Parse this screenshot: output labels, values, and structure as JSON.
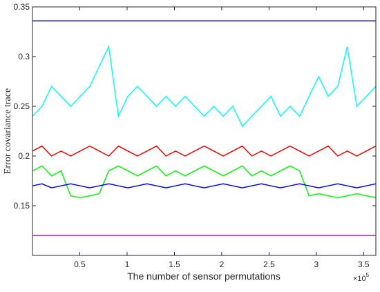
{
  "chart_data": {
    "type": "line",
    "title": "",
    "xlabel": "The number of sensor permutations",
    "ylabel": "Error covariance trace",
    "x_multiplier_label": "×10",
    "x_multiplier_exponent": "5",
    "xlim": [
      0,
      362880
    ],
    "ylim": [
      0.1,
      0.35
    ],
    "xticks": [
      50000,
      100000,
      150000,
      200000,
      250000,
      300000,
      350000
    ],
    "xtick_labels": [
      "0.5",
      "1",
      "1.5",
      "2",
      "2.5",
      "3",
      "3.5"
    ],
    "yticks": [
      0.15,
      0.2,
      0.25,
      0.3,
      0.35
    ],
    "ytick_labels": [
      "0.15",
      "0.2",
      "0.25",
      "0.3",
      "0.35"
    ],
    "grid": false,
    "legend": "none",
    "series": [
      {
        "color": "#00ffff",
        "values": [
          0.24,
          0.25,
          0.27,
          0.26,
          0.25,
          0.26,
          0.27,
          0.29,
          0.31,
          0.24,
          0.26,
          0.27,
          0.26,
          0.25,
          0.26,
          0.25,
          0.26,
          0.25,
          0.24,
          0.25,
          0.24,
          0.25,
          0.23,
          0.24,
          0.25,
          0.26,
          0.24,
          0.25,
          0.24,
          0.26,
          0.28,
          0.26,
          0.27,
          0.31,
          0.25,
          0.26,
          0.27
        ]
      },
      {
        "color": "#ff0000",
        "values": [
          0.205,
          0.21,
          0.2,
          0.205,
          0.2,
          0.205,
          0.21,
          0.205,
          0.2,
          0.21,
          0.205,
          0.2,
          0.205,
          0.21,
          0.2,
          0.205,
          0.2,
          0.205,
          0.21,
          0.205,
          0.2,
          0.205,
          0.21,
          0.2,
          0.205,
          0.2,
          0.205,
          0.21,
          0.205,
          0.2,
          0.205,
          0.21,
          0.2,
          0.205,
          0.2,
          0.205,
          0.21
        ]
      },
      {
        "color": "#00ff00",
        "values": [
          0.185,
          0.19,
          0.18,
          0.185,
          0.16,
          0.158,
          0.16,
          0.162,
          0.185,
          0.19,
          0.185,
          0.18,
          0.185,
          0.19,
          0.18,
          0.185,
          0.18,
          0.185,
          0.19,
          0.185,
          0.18,
          0.185,
          0.19,
          0.18,
          0.185,
          0.18,
          0.185,
          0.19,
          0.185,
          0.16,
          0.162,
          0.16,
          0.158,
          0.16,
          0.162,
          0.16,
          0.158
        ]
      },
      {
        "color": "#0000ff",
        "values": [
          0.17,
          0.172,
          0.168,
          0.17,
          0.172,
          0.17,
          0.168,
          0.17,
          0.172,
          0.17,
          0.168,
          0.17,
          0.172,
          0.17,
          0.168,
          0.17,
          0.172,
          0.17,
          0.168,
          0.17,
          0.172,
          0.17,
          0.168,
          0.17,
          0.172,
          0.17,
          0.168,
          0.17,
          0.172,
          0.17,
          0.168,
          0.17,
          0.172,
          0.17,
          0.168,
          0.17,
          0.172
        ]
      },
      {
        "color": "#ff00ff",
        "values": [
          0.12,
          0.12,
          0.12,
          0.12,
          0.12,
          0.12,
          0.12,
          0.12,
          0.12,
          0.12,
          0.12,
          0.12,
          0.12,
          0.12,
          0.12,
          0.12,
          0.12,
          0.12,
          0.12,
          0.12,
          0.12,
          0.12,
          0.12,
          0.12,
          0.12,
          0.12,
          0.12,
          0.12,
          0.12,
          0.12,
          0.12,
          0.12,
          0.12,
          0.12,
          0.12,
          0.12,
          0.12
        ]
      },
      {
        "color": "#1a1a8c",
        "values": [
          0.336,
          0.336,
          0.336,
          0.336,
          0.336,
          0.336,
          0.336,
          0.336,
          0.336,
          0.336,
          0.336,
          0.336,
          0.336,
          0.336,
          0.336,
          0.336,
          0.336,
          0.336,
          0.336,
          0.336,
          0.336,
          0.336,
          0.336,
          0.336,
          0.336,
          0.336,
          0.336,
          0.336,
          0.336,
          0.336,
          0.336,
          0.336,
          0.336,
          0.336,
          0.336,
          0.336,
          0.336
        ]
      }
    ],
    "x": [
      0,
      10080,
      20160,
      30240,
      40320,
      50400,
      60480,
      70560,
      80640,
      90720,
      100800,
      110880,
      120960,
      131040,
      141120,
      151200,
      161280,
      171360,
      181440,
      191520,
      201600,
      211680,
      221760,
      231840,
      241920,
      252000,
      262080,
      272160,
      282240,
      292320,
      302400,
      312480,
      322560,
      332640,
      342720,
      352800,
      362880
    ]
  }
}
